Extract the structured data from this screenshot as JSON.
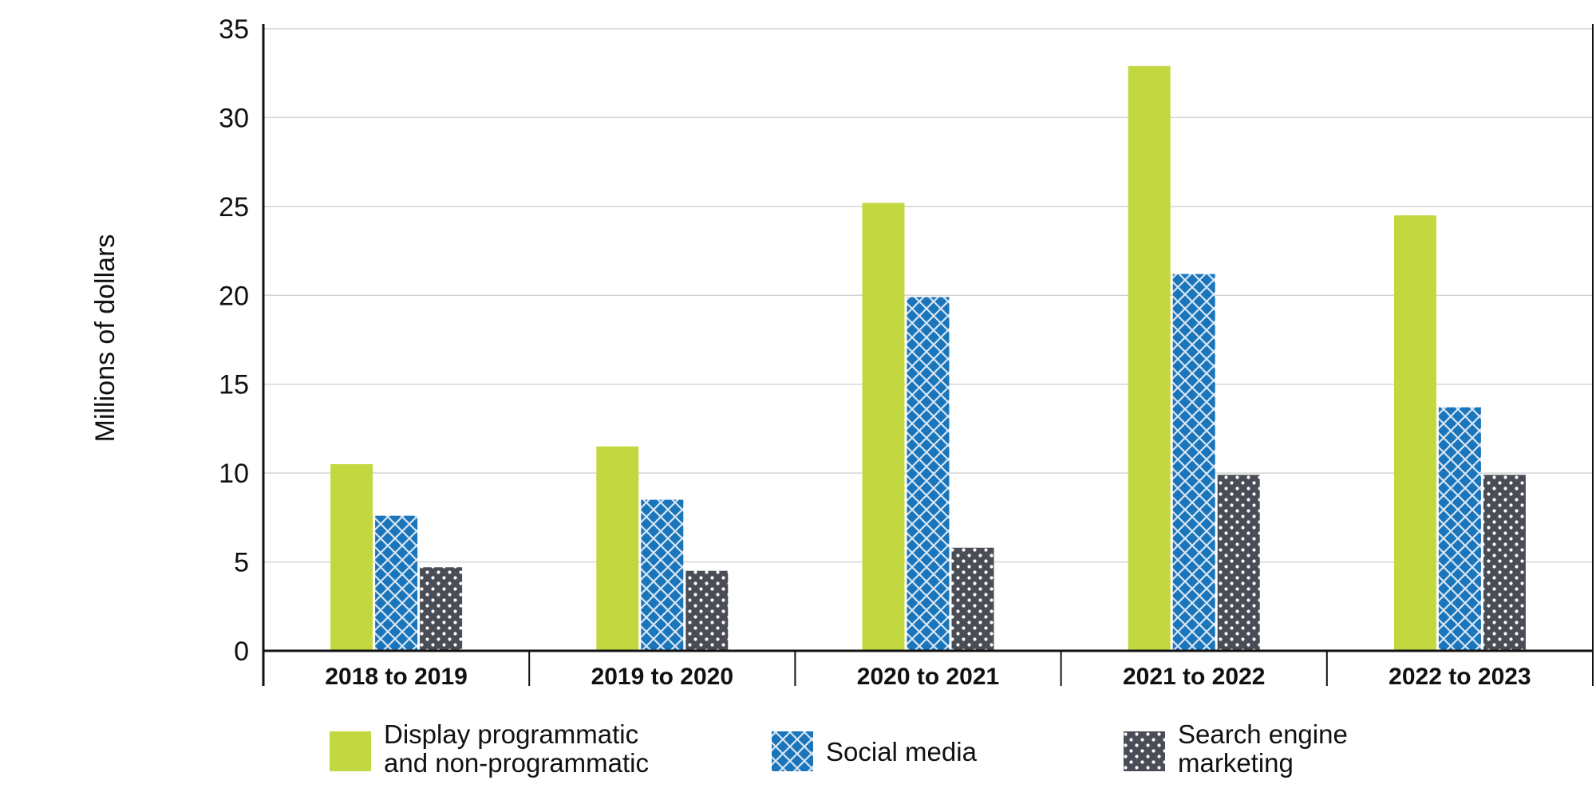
{
  "chart_data": {
    "type": "bar",
    "title": "",
    "xlabel": "",
    "ylabel": "Millions of dollars",
    "ylim": [
      0,
      35
    ],
    "yticks": [
      "0",
      "5",
      "10",
      "15",
      "20",
      "25",
      "30",
      "35"
    ],
    "grid": true,
    "legend_position": "bottom",
    "categories": [
      "2018 to 2019",
      "2019 to 2020",
      "2020 to 2021",
      "2021 to 2022",
      "2022 to 2023"
    ],
    "series": [
      {
        "name": "Display programmatic and non-programmatic",
        "label_lines": [
          "Display programmatic",
          "and non-programmatic"
        ],
        "color": "#c3d840",
        "pattern": "solid",
        "values": [
          10.5,
          11.5,
          25.2,
          32.9,
          24.5
        ]
      },
      {
        "name": "Social media",
        "label_lines": [
          "Social media"
        ],
        "color": "#1a75bb",
        "pattern": "crosshatch",
        "values": [
          7.6,
          8.5,
          19.9,
          21.2,
          13.7
        ]
      },
      {
        "name": "Search engine marketing",
        "label_lines": [
          "Search engine",
          "marketing"
        ],
        "color": "#4a4d55",
        "pattern": "dots",
        "values": [
          4.7,
          4.5,
          5.8,
          9.9,
          9.9
        ]
      }
    ]
  }
}
